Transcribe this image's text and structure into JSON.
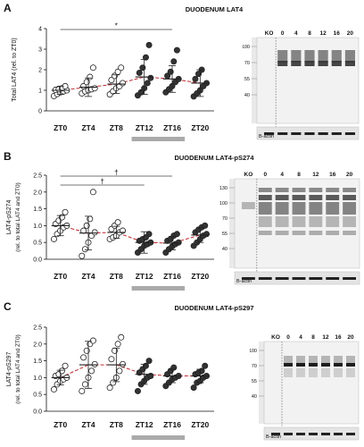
{
  "chart_data": [
    {
      "type": "scatter",
      "panel": "A",
      "title": "DUODENUM LAT4",
      "ylabel": "Total LAT4 (rel. to ZT0)",
      "ylim": [
        0,
        4
      ],
      "yticks": [
        "0",
        "1",
        "2",
        "3",
        "4"
      ],
      "categories": [
        "ZT0",
        "ZT4",
        "ZT8",
        "ZT12",
        "ZT16",
        "ZT20"
      ],
      "fill": [
        "open",
        "open",
        "open",
        "filled",
        "filled",
        "filled"
      ],
      "mean": [
        1.0,
        1.15,
        1.3,
        1.65,
        1.55,
        1.35
      ],
      "sd": [
        0.2,
        0.45,
        0.45,
        0.85,
        0.65,
        0.65
      ],
      "points": [
        [
          0.72,
          0.82,
          0.9,
          0.95,
          1.0,
          1.02,
          1.05,
          1.1,
          1.2
        ],
        [
          0.85,
          0.95,
          1.0,
          1.05,
          1.1,
          1.2,
          1.4,
          1.65,
          2.1
        ],
        [
          0.8,
          0.95,
          1.1,
          1.2,
          1.35,
          1.5,
          1.7,
          1.9,
          2.1
        ],
        [
          0.75,
          0.9,
          1.1,
          1.35,
          1.6,
          1.85,
          2.1,
          2.6,
          3.2
        ],
        [
          0.9,
          1.05,
          1.2,
          1.4,
          1.55,
          1.7,
          1.9,
          2.4,
          2.95
        ],
        [
          0.7,
          0.85,
          1.0,
          1.2,
          1.35,
          1.55,
          1.8,
          2.0
        ]
      ],
      "significance": [
        {
          "from": "ZT0",
          "to": "ZT16",
          "label": "*"
        }
      ],
      "dark_phase_bar": [
        "ZT12",
        "ZT16"
      ],
      "blot": {
        "lane_labels": [
          "KO",
          "0",
          "4",
          "8",
          "12",
          "16",
          "20"
        ],
        "markers": [
          "100",
          "70",
          "55",
          "40"
        ],
        "loading_label": "B-actin"
      }
    },
    {
      "type": "scatter",
      "panel": "B",
      "title": "DUODENUM LAT4-pS274",
      "ylabel": "LAT4-pS274",
      "ylabel2": "(rel. to total LAT4 and ZT0)",
      "ylim": [
        0,
        2.5
      ],
      "yticks": [
        "0.0",
        "0.5",
        "1.0",
        "1.5",
        "2.0",
        "2.5"
      ],
      "categories": [
        "ZT0",
        "ZT4",
        "ZT8",
        "ZT12",
        "ZT16",
        "ZT20"
      ],
      "fill": [
        "open",
        "open",
        "open",
        "filled",
        "filled",
        "filled"
      ],
      "mean": [
        1.0,
        0.78,
        0.8,
        0.5,
        0.48,
        0.72
      ],
      "sd": [
        0.3,
        0.5,
        0.18,
        0.32,
        0.2,
        0.22
      ],
      "points": [
        [
          0.6,
          0.75,
          0.85,
          0.95,
          1.0,
          1.05,
          1.15,
          1.25,
          1.4
        ],
        [
          0.1,
          0.3,
          0.5,
          0.7,
          0.8,
          0.85,
          1.0,
          1.2,
          2.0
        ],
        [
          0.6,
          0.65,
          0.7,
          0.8,
          0.85,
          0.9,
          1.0,
          1.1
        ],
        [
          0.2,
          0.3,
          0.4,
          0.45,
          0.5,
          0.55,
          0.6,
          0.65,
          0.75
        ],
        [
          0.2,
          0.3,
          0.38,
          0.45,
          0.5,
          0.55,
          0.6,
          0.7,
          0.75
        ],
        [
          0.4,
          0.5,
          0.6,
          0.7,
          0.75,
          0.8,
          0.88,
          0.95,
          1.0
        ]
      ],
      "significance": [
        {
          "from": "ZT0",
          "to": "ZT16",
          "label": "†"
        },
        {
          "from": "ZT0",
          "to": "ZT12",
          "label": "†"
        }
      ],
      "dark_phase_bar": [
        "ZT12",
        "ZT16"
      ],
      "blot": {
        "lane_labels": [
          "KO",
          "0",
          "4",
          "8",
          "12",
          "16",
          "20"
        ],
        "markers": [
          "130",
          "100",
          "70",
          "55",
          "40"
        ],
        "loading_label": "B-actin"
      }
    },
    {
      "type": "scatter",
      "panel": "C",
      "title": "DUODENUM LAT4-pS297",
      "ylabel": "LAT4-pS297",
      "ylabel2": "(rel. to total LAT4 and ZT0)",
      "ylim": [
        0.0,
        2.5
      ],
      "yticks": [
        "0.0",
        "0.5",
        "1.0",
        "1.5",
        "2.0",
        "2.5"
      ],
      "categories": [
        "ZT0",
        "ZT4",
        "ZT8",
        "ZT12",
        "ZT16",
        "ZT20"
      ],
      "fill": [
        "open",
        "open",
        "open",
        "filled",
        "filled",
        "filled"
      ],
      "mean": [
        1.0,
        1.38,
        1.38,
        1.1,
        1.05,
        1.05
      ],
      "sd": [
        0.22,
        0.7,
        0.5,
        0.3,
        0.2,
        0.2
      ],
      "points": [
        [
          0.65,
          0.8,
          0.9,
          0.95,
          1.0,
          1.05,
          1.1,
          1.2,
          1.35
        ],
        [
          0.6,
          0.8,
          1.0,
          1.2,
          1.4,
          1.6,
          1.8,
          2.0,
          2.1
        ],
        [
          0.7,
          0.85,
          1.0,
          1.2,
          1.4,
          1.55,
          1.8,
          2.0,
          2.2
        ],
        [
          0.6,
          0.8,
          0.9,
          1.0,
          1.05,
          1.15,
          1.25,
          1.35,
          1.5
        ],
        [
          0.75,
          0.85,
          0.95,
          1.0,
          1.05,
          1.1,
          1.2,
          1.3
        ],
        [
          0.7,
          0.85,
          0.9,
          1.0,
          1.05,
          1.1,
          1.15,
          1.2,
          1.35
        ]
      ],
      "significance": [],
      "dark_phase_bar": [
        "ZT12",
        "ZT16"
      ],
      "blot": {
        "lane_labels": [
          "KO",
          "0",
          "4",
          "8",
          "12",
          "16",
          "20"
        ],
        "markers": [
          "100",
          "70",
          "55",
          "40"
        ],
        "loading_label": "B-actin"
      }
    }
  ]
}
